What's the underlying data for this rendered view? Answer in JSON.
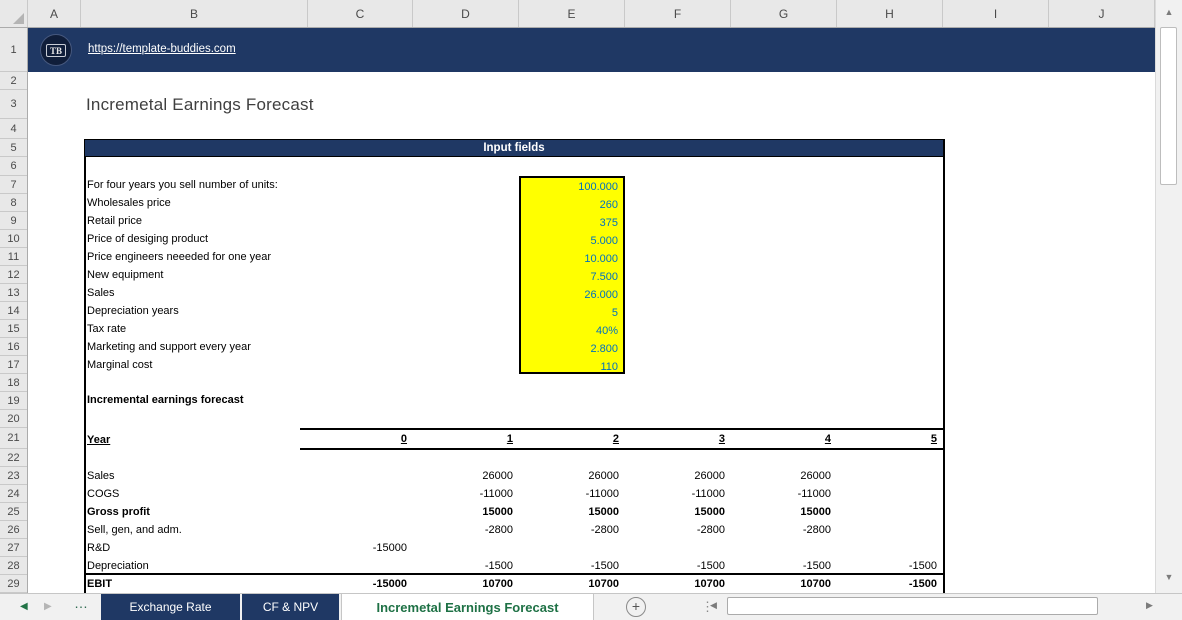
{
  "colors": {
    "navy": "#1F3864",
    "input_highlight": "#FFFF00",
    "input_value_text": "#0070C0",
    "active_tab_green": "#217346"
  },
  "banner": {
    "logo_text": "TB",
    "link": "https://template-buddies.com"
  },
  "page_title": "Incremetal Earnings Forecast",
  "grid": {
    "columns": [
      "A",
      "B",
      "C",
      "D",
      "E",
      "F",
      "G",
      "H",
      "I",
      "J"
    ],
    "rows": [
      "1",
      "2",
      "3",
      "4",
      "5",
      "6",
      "7",
      "8",
      "9",
      "10",
      "11",
      "12",
      "13",
      "14",
      "15",
      "16",
      "17",
      "18",
      "19",
      "20",
      "21",
      "22",
      "23",
      "24",
      "25",
      "26",
      "27",
      "28",
      "29"
    ]
  },
  "input_section": {
    "header": "Input fields",
    "rows": [
      {
        "label": "For four years you sell number of units:",
        "value": "100.000"
      },
      {
        "label": "Wholesales price",
        "value": "260"
      },
      {
        "label": "Retail price",
        "value": "375"
      },
      {
        "label": "Price of desiging product",
        "value": "5.000"
      },
      {
        "label": "Price engineers neeeded for one year",
        "value": "10.000"
      },
      {
        "label": "New equipment",
        "value": "7.500"
      },
      {
        "label": "Sales",
        "value": "26.000"
      },
      {
        "label": "Depreciation years",
        "value": "5"
      },
      {
        "label": "Tax rate",
        "value": "40%"
      },
      {
        "label": "Marketing and support every year",
        "value": "2.800"
      },
      {
        "label": "Marginal cost",
        "value": "110"
      }
    ]
  },
  "forecast": {
    "section_title": "Incremental earnings forecast",
    "year_label": "Year",
    "years": [
      "0",
      "1",
      "2",
      "3",
      "4",
      "5"
    ],
    "rows": [
      {
        "label": "Sales",
        "bold": false,
        "values": [
          "",
          "26000",
          "26000",
          "26000",
          "26000",
          ""
        ]
      },
      {
        "label": "COGS",
        "bold": false,
        "values": [
          "",
          "-11000",
          "-11000",
          "-11000",
          "-11000",
          ""
        ]
      },
      {
        "label": "Gross profit",
        "bold": true,
        "values": [
          "",
          "15000",
          "15000",
          "15000",
          "15000",
          ""
        ]
      },
      {
        "label": "Sell, gen, and adm.",
        "bold": false,
        "values": [
          "",
          "-2800",
          "-2800",
          "-2800",
          "-2800",
          ""
        ]
      },
      {
        "label": "R&D",
        "bold": false,
        "values": [
          "-15000",
          "",
          "",
          "",
          "",
          ""
        ]
      },
      {
        "label": "Depreciation",
        "bold": false,
        "values": [
          "",
          "-1500",
          "-1500",
          "-1500",
          "-1500",
          "-1500"
        ]
      },
      {
        "label": "EBIT",
        "bold": true,
        "values": [
          "-15000",
          "10700",
          "10700",
          "10700",
          "10700",
          "-1500"
        ]
      }
    ]
  },
  "sheet_tabs": {
    "tabs": [
      {
        "label": "Exchange Rate",
        "active": false
      },
      {
        "label": "CF & NPV",
        "active": false
      },
      {
        "label": "Incremetal Earnings Forecast",
        "active": true
      }
    ],
    "add_label": "+"
  },
  "icons": {
    "up_arrow": "▲",
    "down_arrow": "▼",
    "left_arrow": "◀",
    "right_arrow": "▶",
    "tab_prev": "◀",
    "tab_next": "▶",
    "tab_ellipsis": "…",
    "more_dots": "⋮"
  }
}
